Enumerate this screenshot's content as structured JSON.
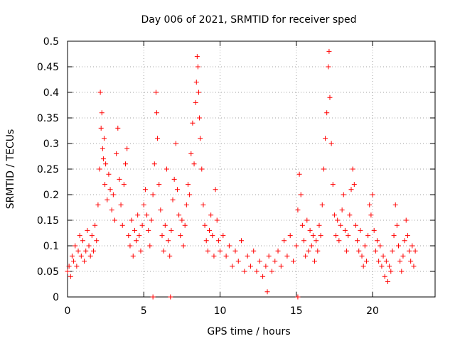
{
  "chart_data": {
    "type": "scatter",
    "title": "Day 006 of 2021, SRMTID for receiver sped",
    "xlabel": "GPS time / hours",
    "ylabel": "SRMTID / TECUs",
    "xlim": [
      0,
      24.1
    ],
    "ylim": [
      0,
      0.5
    ],
    "x_ticks": [
      0,
      5,
      10,
      15,
      20
    ],
    "x_tick_labels": [
      "0",
      "5",
      "10",
      "15",
      "20"
    ],
    "y_ticks": [
      0,
      0.05,
      0.1,
      0.15,
      0.2,
      0.25,
      0.3,
      0.35,
      0.4,
      0.45,
      0.5
    ],
    "y_tick_labels": [
      "0",
      "0.05",
      "0.1",
      "0.15",
      "0.2",
      "0.25",
      "0.3",
      "0.35",
      "0.4",
      "0.45",
      "0.5"
    ],
    "grid": true,
    "marker": "plus",
    "color": "#ff0000",
    "series": [
      {
        "name": "SRMTID",
        "points": [
          [
            0.0,
            0.05
          ],
          [
            0.1,
            0.06
          ],
          [
            0.2,
            0.04
          ],
          [
            0.3,
            0.08
          ],
          [
            0.4,
            0.07
          ],
          [
            0.5,
            0.1
          ],
          [
            0.6,
            0.06
          ],
          [
            0.7,
            0.09
          ],
          [
            0.8,
            0.12
          ],
          [
            0.9,
            0.08
          ],
          [
            1.0,
            0.11
          ],
          [
            1.1,
            0.07
          ],
          [
            1.2,
            0.09
          ],
          [
            1.3,
            0.13
          ],
          [
            1.4,
            0.1
          ],
          [
            1.5,
            0.08
          ],
          [
            1.6,
            0.12
          ],
          [
            1.7,
            0.09
          ],
          [
            1.8,
            0.14
          ],
          [
            1.9,
            0.11
          ],
          [
            2.0,
            0.18
          ],
          [
            2.1,
            0.25
          ],
          [
            2.15,
            0.4
          ],
          [
            2.2,
            0.33
          ],
          [
            2.25,
            0.36
          ],
          [
            2.3,
            0.29
          ],
          [
            2.35,
            0.27
          ],
          [
            2.4,
            0.31
          ],
          [
            2.45,
            0.22
          ],
          [
            2.5,
            0.26
          ],
          [
            2.6,
            0.19
          ],
          [
            2.7,
            0.24
          ],
          [
            2.8,
            0.21
          ],
          [
            2.9,
            0.17
          ],
          [
            3.0,
            0.2
          ],
          [
            3.1,
            0.15
          ],
          [
            3.2,
            0.28
          ],
          [
            3.3,
            0.33
          ],
          [
            3.4,
            0.23
          ],
          [
            3.5,
            0.18
          ],
          [
            3.6,
            0.14
          ],
          [
            3.7,
            0.22
          ],
          [
            3.8,
            0.26
          ],
          [
            3.9,
            0.29
          ],
          [
            4.0,
            0.12
          ],
          [
            4.1,
            0.1
          ],
          [
            4.2,
            0.15
          ],
          [
            4.3,
            0.08
          ],
          [
            4.4,
            0.13
          ],
          [
            4.5,
            0.11
          ],
          [
            4.6,
            0.16
          ],
          [
            4.7,
            0.12
          ],
          [
            4.8,
            0.09
          ],
          [
            4.9,
            0.14
          ],
          [
            5.0,
            0.18
          ],
          [
            5.1,
            0.21
          ],
          [
            5.2,
            0.16
          ],
          [
            5.3,
            0.13
          ],
          [
            5.4,
            0.1
          ],
          [
            5.5,
            0.15
          ],
          [
            5.6,
            0.2
          ],
          [
            5.7,
            0.26
          ],
          [
            5.8,
            0.4
          ],
          [
            5.85,
            0.36
          ],
          [
            5.9,
            0.31
          ],
          [
            6.0,
            0.22
          ],
          [
            6.1,
            0.17
          ],
          [
            6.2,
            0.12
          ],
          [
            6.3,
            0.09
          ],
          [
            6.4,
            0.14
          ],
          [
            6.5,
            0.25
          ],
          [
            6.6,
            0.11
          ],
          [
            6.7,
            0.08
          ],
          [
            6.8,
            0.13
          ],
          [
            6.9,
            0.19
          ],
          [
            7.0,
            0.23
          ],
          [
            7.1,
            0.3
          ],
          [
            7.2,
            0.21
          ],
          [
            7.3,
            0.16
          ],
          [
            7.4,
            0.12
          ],
          [
            7.5,
            0.15
          ],
          [
            7.6,
            0.1
          ],
          [
            7.7,
            0.14
          ],
          [
            7.8,
            0.18
          ],
          [
            7.9,
            0.22
          ],
          [
            8.0,
            0.2
          ],
          [
            8.1,
            0.28
          ],
          [
            8.2,
            0.34
          ],
          [
            8.3,
            0.26
          ],
          [
            8.4,
            0.38
          ],
          [
            8.45,
            0.42
          ],
          [
            8.5,
            0.47
          ],
          [
            8.55,
            0.45
          ],
          [
            8.6,
            0.4
          ],
          [
            8.65,
            0.35
          ],
          [
            8.7,
            0.31
          ],
          [
            8.8,
            0.25
          ],
          [
            8.9,
            0.18
          ],
          [
            9.0,
            0.14
          ],
          [
            9.1,
            0.11
          ],
          [
            9.2,
            0.09
          ],
          [
            9.3,
            0.13
          ],
          [
            9.4,
            0.16
          ],
          [
            9.5,
            0.12
          ],
          [
            9.6,
            0.08
          ],
          [
            9.7,
            0.21
          ],
          [
            9.8,
            0.15
          ],
          [
            9.9,
            0.11
          ],
          [
            10.0,
            0.09
          ],
          [
            10.2,
            0.12
          ],
          [
            10.4,
            0.08
          ],
          [
            10.6,
            0.1
          ],
          [
            10.8,
            0.06
          ],
          [
            11.0,
            0.09
          ],
          [
            11.2,
            0.07
          ],
          [
            11.4,
            0.11
          ],
          [
            11.6,
            0.05
          ],
          [
            11.8,
            0.08
          ],
          [
            12.0,
            0.06
          ],
          [
            12.2,
            0.09
          ],
          [
            12.4,
            0.05
          ],
          [
            12.6,
            0.07
          ],
          [
            12.8,
            0.04
          ],
          [
            13.0,
            0.06
          ],
          [
            13.1,
            0.01
          ],
          [
            13.2,
            0.08
          ],
          [
            13.4,
            0.05
          ],
          [
            13.6,
            0.07
          ],
          [
            13.8,
            0.09
          ],
          [
            14.0,
            0.06
          ],
          [
            14.2,
            0.11
          ],
          [
            14.4,
            0.08
          ],
          [
            14.6,
            0.12
          ],
          [
            14.8,
            0.07
          ],
          [
            15.0,
            0.1
          ],
          [
            15.1,
            0.17
          ],
          [
            15.2,
            0.24
          ],
          [
            15.3,
            0.2
          ],
          [
            15.4,
            0.14
          ],
          [
            15.5,
            0.11
          ],
          [
            15.6,
            0.08
          ],
          [
            15.7,
            0.15
          ],
          [
            15.8,
            0.09
          ],
          [
            15.9,
            0.13
          ],
          [
            16.0,
            0.1
          ],
          [
            16.1,
            0.12
          ],
          [
            16.2,
            0.07
          ],
          [
            16.3,
            0.11
          ],
          [
            16.4,
            0.09
          ],
          [
            16.5,
            0.14
          ],
          [
            16.6,
            0.12
          ],
          [
            16.7,
            0.18
          ],
          [
            16.8,
            0.25
          ],
          [
            16.9,
            0.31
          ],
          [
            17.0,
            0.36
          ],
          [
            17.1,
            0.45
          ],
          [
            17.15,
            0.48
          ],
          [
            17.2,
            0.39
          ],
          [
            17.3,
            0.3
          ],
          [
            17.4,
            0.22
          ],
          [
            17.5,
            0.16
          ],
          [
            17.6,
            0.12
          ],
          [
            17.7,
            0.15
          ],
          [
            17.8,
            0.11
          ],
          [
            17.9,
            0.14
          ],
          [
            18.0,
            0.17
          ],
          [
            18.1,
            0.2
          ],
          [
            18.2,
            0.13
          ],
          [
            18.3,
            0.09
          ],
          [
            18.4,
            0.12
          ],
          [
            18.5,
            0.16
          ],
          [
            18.6,
            0.21
          ],
          [
            18.7,
            0.25
          ],
          [
            18.8,
            0.22
          ],
          [
            18.9,
            0.14
          ],
          [
            19.0,
            0.11
          ],
          [
            19.1,
            0.09
          ],
          [
            19.2,
            0.13
          ],
          [
            19.3,
            0.08
          ],
          [
            19.4,
            0.06
          ],
          [
            19.5,
            0.1
          ],
          [
            19.6,
            0.07
          ],
          [
            19.7,
            0.12
          ],
          [
            19.8,
            0.18
          ],
          [
            19.9,
            0.16
          ],
          [
            20.0,
            0.2
          ],
          [
            20.1,
            0.13
          ],
          [
            20.2,
            0.09
          ],
          [
            20.3,
            0.11
          ],
          [
            20.4,
            0.07
          ],
          [
            20.5,
            0.1
          ],
          [
            20.6,
            0.06
          ],
          [
            20.7,
            0.08
          ],
          [
            20.8,
            0.04
          ],
          [
            20.9,
            0.07
          ],
          [
            21.0,
            0.03
          ],
          [
            21.1,
            0.06
          ],
          [
            21.2,
            0.05
          ],
          [
            21.3,
            0.09
          ],
          [
            21.4,
            0.12
          ],
          [
            21.5,
            0.18
          ],
          [
            21.6,
            0.14
          ],
          [
            21.7,
            0.1
          ],
          [
            21.8,
            0.07
          ],
          [
            21.9,
            0.05
          ],
          [
            22.0,
            0.08
          ],
          [
            22.1,
            0.11
          ],
          [
            22.2,
            0.15
          ],
          [
            22.3,
            0.12
          ],
          [
            22.4,
            0.09
          ],
          [
            22.5,
            0.07
          ],
          [
            22.6,
            0.1
          ],
          [
            22.7,
            0.06
          ],
          [
            22.8,
            0.09
          ],
          [
            5.6,
            0.0
          ],
          [
            6.75,
            0.0
          ],
          [
            15.1,
            0.0
          ]
        ]
      }
    ]
  }
}
